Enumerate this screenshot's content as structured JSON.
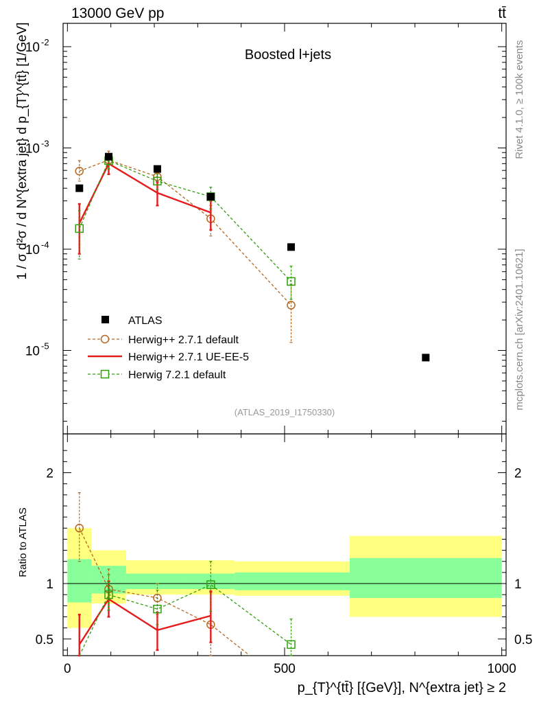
{
  "header": {
    "energy": "13000 GeV pp",
    "process": "tt̄",
    "rivet": "Rivet 4.1.0, ≥ 100k events",
    "source": "mcplots.cern.ch [arXiv:2401.10621]",
    "analysis": "(ATLAS_2019_I1750330)"
  },
  "chart_data": [
    {
      "type": "scatter",
      "title": "Boosted l+jets",
      "yscale": "log",
      "ylim": [
        1.5e-06,
        0.017
      ],
      "xlim": [
        -10,
        1010
      ],
      "xlabel": "p_{T}^{tt̄} [{GeV}], N^{extra jet} ≥ 2",
      "ylabel": "1 / σ d²σ / d N^{extra jet} d p_{T}^{tt̄} [1/GeV]",
      "yticks": [
        {
          "v": 1e-05,
          "label": "10^-5"
        },
        {
          "v": 0.0001,
          "label": "10^-4"
        },
        {
          "v": 0.001,
          "label": "10^-3"
        },
        {
          "v": 0.01,
          "label": "10^-2"
        }
      ],
      "bins": [
        0,
        55,
        135,
        270,
        385,
        650,
        1000
      ],
      "series": [
        {
          "name": "ATLAS",
          "color": "#000000",
          "marker": "square-filled",
          "x": [
            27.5,
            95,
            207,
            330,
            515,
            825
          ],
          "y": [
            0.0004,
            0.00082,
            0.00062,
            0.00033,
            0.000105,
            8.5e-06
          ]
        },
        {
          "name": "Herwig++ 2.7.1 default",
          "color": "#b5651d",
          "marker": "circle-open",
          "dashed": true,
          "x": [
            27.5,
            95,
            207,
            330,
            515
          ],
          "y": [
            0.00059,
            0.00076,
            0.00052,
            0.0002,
            2.8e-05
          ],
          "lo": [
            0.00047,
            0.00062,
            0.00043,
            0.000135,
            1.2e-05
          ],
          "hi": [
            0.00075,
            0.00093,
            0.00062,
            0.00027,
            4.5e-05
          ]
        },
        {
          "name": "Herwig++ 2.7.1 UE-EE-5",
          "color": "#e41a1c",
          "marker": "none",
          "dashed": false,
          "x": [
            27.5,
            95,
            207,
            330
          ],
          "y": [
            0.00018,
            0.0007,
            0.00036,
            0.00023
          ],
          "lo": [
            9e-05,
            0.00055,
            0.00027,
            0.000155
          ],
          "hi": [
            0.00028,
            0.00085,
            0.00046,
            0.0003
          ]
        },
        {
          "name": "Herwig 7.2.1 default",
          "color": "#2e9e0b",
          "marker": "square-open",
          "dashed": true,
          "x": [
            27.5,
            95,
            207,
            330,
            515
          ],
          "y": [
            0.00016,
            0.00075,
            0.00047,
            0.00033,
            4.8e-05
          ],
          "lo": [
            8e-05,
            0.00062,
            0.00039,
            0.00025,
            3.2e-05
          ],
          "hi": [
            0.00024,
            0.00088,
            0.00055,
            0.00041,
            6.8e-05
          ]
        }
      ]
    },
    {
      "type": "scatter",
      "ylabel": "Ratio to ATLAS",
      "ylim": [
        0.35,
        2.35
      ],
      "xticks": [
        0,
        500,
        1000
      ],
      "yticks": [
        0.5,
        1,
        2
      ],
      "bands": {
        "edges": [
          0,
          55,
          135,
          270,
          385,
          650,
          1000
        ],
        "yellow": [
          [
            0.6,
            1.5
          ],
          [
            0.82,
            1.3
          ],
          [
            0.9,
            1.21
          ],
          [
            0.9,
            1.21
          ],
          [
            0.89,
            1.2
          ],
          [
            0.7,
            1.43
          ]
        ],
        "green": [
          [
            0.83,
            1.22
          ],
          [
            0.91,
            1.16
          ],
          [
            0.95,
            1.09
          ],
          [
            0.95,
            1.09
          ],
          [
            0.94,
            1.1
          ],
          [
            0.87,
            1.23
          ]
        ]
      },
      "series": [
        {
          "name": "Herwig++ 2.7.1 default",
          "color": "#b5651d",
          "marker": "circle-open",
          "dashed": true,
          "x": [
            27.5,
            95,
            207,
            330,
            420
          ],
          "y": [
            1.5,
            0.95,
            0.87,
            0.63,
            0.3
          ],
          "lo": [
            1.2,
            0.76,
            0.72,
            0.35,
            null
          ],
          "hi": [
            1.82,
            1.13,
            1.0,
            0.92,
            null
          ],
          "markers": [
            true,
            true,
            true,
            true,
            false
          ]
        },
        {
          "name": "Herwig++ 2.7.1 UE-EE-5",
          "color": "#e41a1c",
          "marker": "none",
          "dashed": false,
          "x": [
            27.5,
            95,
            207,
            330
          ],
          "y": [
            0.45,
            0.86,
            0.58,
            0.71
          ],
          "lo": [
            0.28,
            0.7,
            0.4,
            0.47
          ],
          "hi": [
            0.72,
            1.02,
            0.74,
            0.93
          ]
        },
        {
          "name": "Herwig 7.2.1 default",
          "color": "#2e9e0b",
          "marker": "square-open",
          "dashed": true,
          "x": [
            27.5,
            95,
            207,
            330,
            515
          ],
          "y": [
            0.3,
            0.9,
            0.77,
            0.99,
            0.45
          ],
          "lo": [
            null,
            0.76,
            0.63,
            0.75,
            0.31
          ],
          "hi": [
            null,
            1.08,
            0.94,
            1.2,
            0.68
          ],
          "markers": [
            false,
            true,
            true,
            true,
            true
          ]
        }
      ]
    }
  ]
}
